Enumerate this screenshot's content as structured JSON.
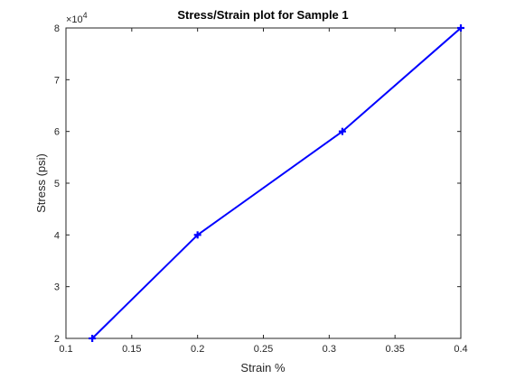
{
  "chart_data": {
    "type": "line",
    "title": "Stress/Strain plot for Sample 1",
    "xlabel": "Strain %",
    "ylabel": "Stress (psi)",
    "x": [
      0.12,
      0.2,
      0.31,
      0.4
    ],
    "series": [
      {
        "values": [
          20000,
          40000,
          60000,
          80000
        ]
      }
    ],
    "xlim": [
      0.1,
      0.4
    ],
    "ylim": [
      20000,
      80000
    ],
    "xticks": [
      0.1,
      0.15,
      0.2,
      0.25,
      0.3,
      0.35,
      0.4
    ],
    "xtick_labels": [
      "0.1",
      "0.15",
      "0.2",
      "0.25",
      "0.3",
      "0.35",
      "0.4"
    ],
    "yticks": [
      20000,
      30000,
      40000,
      50000,
      60000,
      70000,
      80000
    ],
    "ytick_labels": [
      "2",
      "3",
      "4",
      "5",
      "6",
      "7",
      "8"
    ],
    "y_exponent_base": "×10",
    "y_exponent_power": "4",
    "grid": false,
    "marker": "plus",
    "colors": {
      "series": "#0000ff",
      "axes": "#262626"
    }
  }
}
